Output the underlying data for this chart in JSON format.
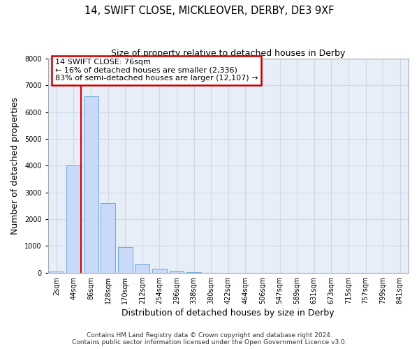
{
  "title": "14, SWIFT CLOSE, MICKLEOVER, DERBY, DE3 9XF",
  "subtitle": "Size of property relative to detached houses in Derby",
  "xlabel": "Distribution of detached houses by size in Derby",
  "ylabel": "Number of detached properties",
  "bar_labels": [
    "2sqm",
    "44sqm",
    "86sqm",
    "128sqm",
    "170sqm",
    "212sqm",
    "254sqm",
    "296sqm",
    "338sqm",
    "380sqm",
    "422sqm",
    "464sqm",
    "506sqm",
    "547sqm",
    "589sqm",
    "631sqm",
    "673sqm",
    "715sqm",
    "757sqm",
    "799sqm",
    "841sqm"
  ],
  "bar_values": [
    55,
    4000,
    6600,
    2600,
    960,
    330,
    140,
    60,
    10,
    5,
    0,
    0,
    0,
    0,
    0,
    0,
    0,
    0,
    0,
    0,
    0
  ],
  "bar_color": "#c9daf8",
  "bar_edge_color": "#6fa8dc",
  "vline_color": "#cc0000",
  "ylim": [
    0,
    8000
  ],
  "yticks": [
    0,
    1000,
    2000,
    3000,
    4000,
    5000,
    6000,
    7000,
    8000
  ],
  "annotation_title": "14 SWIFT CLOSE: 76sqm",
  "annotation_line1": "← 16% of detached houses are smaller (2,336)",
  "annotation_line2": "83% of semi-detached houses are larger (12,107) →",
  "annotation_box_color": "#ffffff",
  "annotation_box_edge": "#cc0000",
  "footer_line1": "Contains HM Land Registry data © Crown copyright and database right 2024.",
  "footer_line2": "Contains public sector information licensed under the Open Government Licence v3.0.",
  "bg_color": "#ffffff",
  "grid_color": "#d0d8e8",
  "title_fontsize": 10.5,
  "subtitle_fontsize": 9,
  "axis_label_fontsize": 9,
  "tick_fontsize": 7,
  "footer_fontsize": 6.5,
  "annotation_fontsize": 8
}
